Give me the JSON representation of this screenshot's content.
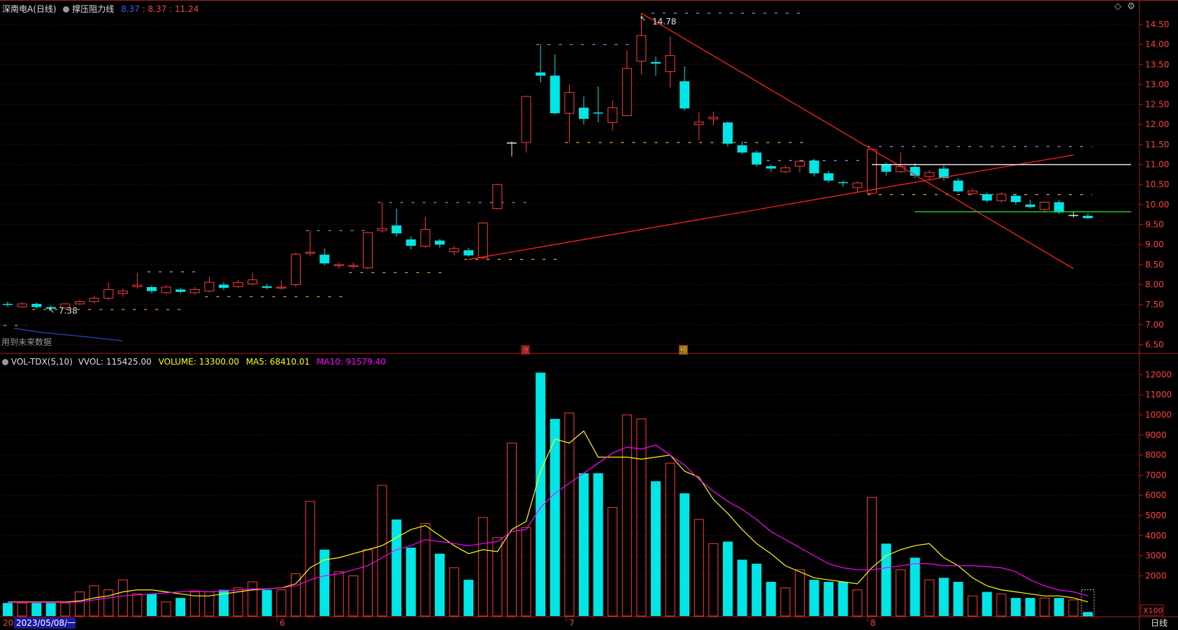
{
  "header": {
    "stock_name": "深南电A",
    "period": "(日线)",
    "indicator_icon": "circle-icon",
    "indicator_name": "撑压阻力线",
    "values": [
      "8.37",
      "8.37",
      "11.24"
    ],
    "separator": ":"
  },
  "volume_header": {
    "indicator_name": "VOL-TDX(5,10)",
    "vvol": "VVOL: 115425.00",
    "volume": "VOLUME: 13300.00",
    "ma5": "MA5: 68410.01",
    "ma10": "MA10: 91579.40"
  },
  "labels": {
    "future_data": "用到未来数据",
    "max_label": "14.78",
    "min_label": "7.38",
    "marker_zhang": "涨",
    "marker_yu": "预",
    "unit": "X100",
    "period_tab": "日线",
    "date_prefix": "20",
    "date_cursor": "2023/05/08/一",
    "month_6": "6",
    "month_7": "7",
    "month_8": "8"
  },
  "colors": {
    "up": "#ff3b3b",
    "down": "#00e5e5",
    "ma5": "#ffff00",
    "ma10": "#ff00ff",
    "axis": "#aa1d1d",
    "grid": "#5a1010",
    "price_text": "#ff4040",
    "level_white": "#e8e8e8",
    "level_green": "#22cc22"
  },
  "chart_data": [
    {
      "type": "candlestick",
      "title": "深南电A (日线)",
      "ylim": [
        6.3,
        14.9
      ],
      "y_ticks": [
        "6.50",
        "7.00",
        "7.50",
        "8.00",
        "8.50",
        "9.00",
        "9.50",
        "10.00",
        "10.50",
        "11.00",
        "11.50",
        "12.00",
        "12.50",
        "13.00",
        "13.50",
        "14.00",
        "14.50"
      ],
      "candles": [
        {
          "o": 7.52,
          "c": 7.5,
          "h": 7.58,
          "l": 7.45
        },
        {
          "o": 7.45,
          "c": 7.52,
          "h": 7.56,
          "l": 7.42
        },
        {
          "o": 7.52,
          "c": 7.44,
          "h": 7.56,
          "l": 7.4
        },
        {
          "o": 7.44,
          "c": 7.4,
          "h": 7.48,
          "l": 7.38
        },
        {
          "o": 7.42,
          "c": 7.52,
          "h": 7.54,
          "l": 7.4
        },
        {
          "o": 7.52,
          "c": 7.58,
          "h": 7.62,
          "l": 7.5
        },
        {
          "o": 7.58,
          "c": 7.66,
          "h": 7.72,
          "l": 7.54
        },
        {
          "o": 7.66,
          "c": 7.88,
          "h": 8.05,
          "l": 7.6
        },
        {
          "o": 7.78,
          "c": 7.84,
          "h": 7.9,
          "l": 7.7
        },
        {
          "o": 7.95,
          "c": 7.99,
          "h": 8.3,
          "l": 7.9
        },
        {
          "o": 7.94,
          "c": 7.84,
          "h": 7.98,
          "l": 7.78
        },
        {
          "o": 7.8,
          "c": 7.94,
          "h": 7.98,
          "l": 7.76
        },
        {
          "o": 7.88,
          "c": 7.82,
          "h": 7.92,
          "l": 7.78
        },
        {
          "o": 7.8,
          "c": 7.88,
          "h": 7.94,
          "l": 7.74
        },
        {
          "o": 7.84,
          "c": 8.06,
          "h": 8.2,
          "l": 7.8
        },
        {
          "o": 8.0,
          "c": 7.92,
          "h": 8.06,
          "l": 7.86
        },
        {
          "o": 7.95,
          "c": 8.05,
          "h": 8.12,
          "l": 7.92
        },
        {
          "o": 8.02,
          "c": 8.12,
          "h": 8.3,
          "l": 7.98
        },
        {
          "o": 7.96,
          "c": 7.92,
          "h": 8.02,
          "l": 7.88
        },
        {
          "o": 7.92,
          "c": 7.94,
          "h": 8.1,
          "l": 7.88
        },
        {
          "o": 8.0,
          "c": 8.76,
          "h": 8.8,
          "l": 7.95
        },
        {
          "o": 8.78,
          "c": 8.81,
          "h": 9.35,
          "l": 8.72
        },
        {
          "o": 8.75,
          "c": 8.53,
          "h": 8.9,
          "l": 8.48
        },
        {
          "o": 8.5,
          "c": 8.5,
          "h": 8.56,
          "l": 8.4
        },
        {
          "o": 8.46,
          "c": 8.48,
          "h": 8.55,
          "l": 8.4
        },
        {
          "o": 8.42,
          "c": 9.3,
          "h": 9.32,
          "l": 8.38
        },
        {
          "o": 9.35,
          "c": 9.4,
          "h": 10.05,
          "l": 9.3
        },
        {
          "o": 9.48,
          "c": 9.28,
          "h": 9.9,
          "l": 9.2
        },
        {
          "o": 9.13,
          "c": 8.97,
          "h": 9.2,
          "l": 8.88
        },
        {
          "o": 8.96,
          "c": 9.38,
          "h": 9.7,
          "l": 8.92
        },
        {
          "o": 9.1,
          "c": 9.0,
          "h": 9.14,
          "l": 8.92
        },
        {
          "o": 8.82,
          "c": 8.9,
          "h": 8.96,
          "l": 8.74
        },
        {
          "o": 8.86,
          "c": 8.73,
          "h": 8.92,
          "l": 8.7
        },
        {
          "o": 8.67,
          "c": 9.54,
          "h": 9.56,
          "l": 8.64
        },
        {
          "o": 9.9,
          "c": 10.5,
          "h": 10.52,
          "l": 9.88
        },
        {
          "o": 11.55,
          "c": 11.55,
          "h": 11.58,
          "l": 11.2
        },
        {
          "o": 11.55,
          "c": 12.7,
          "h": 12.72,
          "l": 11.3
        },
        {
          "o": 13.3,
          "c": 13.22,
          "h": 14.0,
          "l": 13.05
        },
        {
          "o": 13.22,
          "c": 12.28,
          "h": 13.75,
          "l": 12.25
        },
        {
          "o": 12.28,
          "c": 12.8,
          "h": 13.0,
          "l": 11.55
        },
        {
          "o": 12.42,
          "c": 12.14,
          "h": 12.7,
          "l": 12.0
        },
        {
          "o": 12.3,
          "c": 12.28,
          "h": 12.95,
          "l": 12.05
        },
        {
          "o": 12.05,
          "c": 12.42,
          "h": 12.6,
          "l": 11.85
        },
        {
          "o": 12.22,
          "c": 13.4,
          "h": 13.85,
          "l": 12.22
        },
        {
          "o": 13.58,
          "c": 14.22,
          "h": 14.78,
          "l": 13.25
        },
        {
          "o": 13.56,
          "c": 13.52,
          "h": 13.7,
          "l": 13.22
        },
        {
          "o": 13.32,
          "c": 13.72,
          "h": 14.2,
          "l": 12.92
        },
        {
          "o": 13.08,
          "c": 12.4,
          "h": 13.45,
          "l": 12.35
        },
        {
          "o": 12.0,
          "c": 12.06,
          "h": 12.3,
          "l": 11.62
        },
        {
          "o": 12.14,
          "c": 12.18,
          "h": 12.32,
          "l": 11.98
        },
        {
          "o": 12.05,
          "c": 11.52,
          "h": 12.08,
          "l": 11.45
        },
        {
          "o": 11.48,
          "c": 11.3,
          "h": 11.58,
          "l": 11.25
        },
        {
          "o": 11.3,
          "c": 11.0,
          "h": 11.35,
          "l": 10.95
        },
        {
          "o": 10.96,
          "c": 10.9,
          "h": 11.0,
          "l": 10.82
        },
        {
          "o": 10.82,
          "c": 10.92,
          "h": 10.98,
          "l": 10.78
        },
        {
          "o": 10.96,
          "c": 11.08,
          "h": 11.12,
          "l": 10.8
        },
        {
          "o": 11.1,
          "c": 10.78,
          "h": 11.14,
          "l": 10.7
        },
        {
          "o": 10.78,
          "c": 10.6,
          "h": 10.84,
          "l": 10.55
        },
        {
          "o": 10.56,
          "c": 10.54,
          "h": 10.6,
          "l": 10.45
        },
        {
          "o": 10.42,
          "c": 10.54,
          "h": 10.58,
          "l": 10.32
        },
        {
          "o": 10.28,
          "c": 11.38,
          "h": 11.4,
          "l": 10.25
        },
        {
          "o": 11.0,
          "c": 10.82,
          "h": 11.05,
          "l": 10.72
        },
        {
          "o": 10.82,
          "c": 10.95,
          "h": 11.3,
          "l": 10.78
        },
        {
          "o": 10.94,
          "c": 10.72,
          "h": 11.04,
          "l": 10.66
        },
        {
          "o": 10.7,
          "c": 10.8,
          "h": 10.86,
          "l": 10.62
        },
        {
          "o": 10.9,
          "c": 10.66,
          "h": 10.98,
          "l": 10.6
        },
        {
          "o": 10.6,
          "c": 10.33,
          "h": 10.66,
          "l": 10.3
        },
        {
          "o": 10.28,
          "c": 10.34,
          "h": 10.4,
          "l": 10.24
        },
        {
          "o": 10.26,
          "c": 10.1,
          "h": 10.3,
          "l": 10.05
        },
        {
          "o": 10.1,
          "c": 10.26,
          "h": 10.3,
          "l": 10.05
        },
        {
          "o": 10.22,
          "c": 10.06,
          "h": 10.28,
          "l": 10.0
        },
        {
          "o": 10.0,
          "c": 9.94,
          "h": 10.12,
          "l": 9.9
        },
        {
          "o": 9.88,
          "c": 10.06,
          "h": 10.08,
          "l": 9.82
        },
        {
          "o": 10.06,
          "c": 9.8,
          "h": 10.12,
          "l": 9.76
        },
        {
          "o": 9.74,
          "c": 9.74,
          "h": 9.84,
          "l": 9.68
        },
        {
          "o": 9.72,
          "c": 9.66,
          "h": 9.78,
          "l": 9.64
        }
      ],
      "lines": [
        {
          "name": "down-trend",
          "x1": 44,
          "y1": 14.78,
          "x2": 74,
          "y2": 8.4,
          "color": "#ff2020"
        },
        {
          "name": "up-trend",
          "x1": 32,
          "y1": 8.63,
          "x2": 74,
          "y2": 11.24,
          "color": "#ff2020"
        },
        {
          "name": "resistance-white",
          "x1": 60,
          "y1": 11.0,
          "x2": 78,
          "y2": 11.0,
          "color": "#e8e8e8"
        },
        {
          "name": "support-green",
          "x1": 63,
          "y1": 9.82,
          "x2": 78,
          "y2": 9.82,
          "color": "#22cc22"
        }
      ],
      "dashed_levels": [
        {
          "x1": 0,
          "x2": 1,
          "y": 6.98,
          "color": "#e8a020"
        },
        {
          "x1": 2,
          "x2": 12,
          "y": 7.38,
          "color": "#e8a020"
        },
        {
          "x1": 14,
          "x2": 23,
          "y": 7.7,
          "color": "#e8a020"
        },
        {
          "x1": 10,
          "x2": 13,
          "y": 8.32,
          "color": "#8c8cff"
        },
        {
          "x1": 21,
          "x2": 25,
          "y": 9.35,
          "color": "#8c8cff"
        },
        {
          "x1": 24,
          "x2": 30,
          "y": 8.3,
          "color": "#e8a020"
        },
        {
          "x1": 26,
          "x2": 36,
          "y": 10.05,
          "color": "#8c8cff"
        },
        {
          "x1": 32,
          "x2": 38,
          "y": 8.63,
          "color": "#e8a020"
        },
        {
          "x1": 37,
          "x2": 43,
          "y": 14.0,
          "color": "#8c8cff"
        },
        {
          "x1": 39,
          "x2": 55,
          "y": 11.55,
          "color": "#e8a020"
        },
        {
          "x1": 45,
          "x2": 55,
          "y": 14.78,
          "color": "#8c8cff"
        },
        {
          "x1": 53,
          "x2": 59,
          "y": 11.1,
          "color": "#8c8cff"
        },
        {
          "x1": 60,
          "x2": 75,
          "y": 11.45,
          "color": "#8c8cff"
        },
        {
          "x1": 60,
          "x2": 75,
          "y": 10.25,
          "color": "#e8a020"
        }
      ]
    },
    {
      "type": "bar",
      "title": "VOL-TDX(5,10)",
      "ylim": [
        0,
        12500
      ],
      "y_ticks": [
        "2000",
        "3000",
        "4000",
        "5000",
        "6000",
        "7000",
        "8000",
        "9000",
        "10000",
        "11000",
        "12000"
      ],
      "unit": "X100",
      "series": [
        {
          "name": "VOLUME",
          "values": [
            650,
            650,
            650,
            650,
            650,
            1200,
            1500,
            1300,
            1800,
            1100,
            1100,
            700,
            900,
            1200,
            1200,
            1300,
            1400,
            1700,
            1300,
            1300,
            2100,
            5700,
            3300,
            2200,
            2000,
            3300,
            6500,
            4800,
            3400,
            4600,
            3100,
            2400,
            1800,
            4900,
            3900,
            8600,
            4400,
            12100,
            9800,
            10100,
            7100,
            7100,
            5400,
            10000,
            9800,
            6700,
            7600,
            6100,
            4800,
            3600,
            3700,
            2800,
            2600,
            1700,
            1400,
            2300,
            1800,
            1700,
            1700,
            1300,
            5900,
            3600,
            2300,
            2900,
            1800,
            1900,
            1700,
            1000,
            1200,
            1100,
            900,
            900,
            900,
            900,
            800,
            200
          ]
        },
        {
          "name": "MA5",
          "values": [
            700,
            700,
            700,
            700,
            700,
            750,
            900,
            1000,
            1200,
            1300,
            1300,
            1200,
            1100,
            1000,
            1000,
            1100,
            1200,
            1300,
            1350,
            1400,
            1600,
            2400,
            2800,
            2900,
            3100,
            3300,
            3500,
            3900,
            4300,
            4500,
            4000,
            3500,
            3100,
            3300,
            3200,
            4300,
            4700,
            7200,
            8800,
            8600,
            9200,
            7900,
            7900,
            7900,
            7800,
            7900,
            8000,
            7200,
            6900,
            5800,
            5100,
            4300,
            3600,
            3100,
            2500,
            2200,
            1900,
            1800,
            1700,
            1600,
            2400,
            3000,
            3300,
            3500,
            3600,
            2900,
            2500,
            1900,
            1500,
            1300,
            1200,
            1100,
            1000,
            1000,
            900,
            700
          ]
        },
        {
          "name": "MA10",
          "values": [
            680,
            680,
            680,
            680,
            680,
            700,
            800,
            900,
            1000,
            1050,
            1100,
            1150,
            1200,
            1250,
            1200,
            1250,
            1300,
            1350,
            1350,
            1400,
            1500,
            1800,
            2000,
            2100,
            2300,
            2500,
            2900,
            3300,
            3500,
            3800,
            3700,
            3600,
            3500,
            3600,
            3700,
            4200,
            4300,
            5400,
            6100,
            6600,
            7100,
            7600,
            8100,
            8400,
            8300,
            8500,
            8000,
            7500,
            6800,
            6200,
            5700,
            5300,
            4800,
            4200,
            3800,
            3400,
            3000,
            2600,
            2400,
            2300,
            2300,
            2400,
            2500,
            2600,
            2600,
            2500,
            2500,
            2500,
            2450,
            2400,
            2200,
            1800,
            1500,
            1300,
            1200,
            1000
          ]
        }
      ]
    }
  ]
}
